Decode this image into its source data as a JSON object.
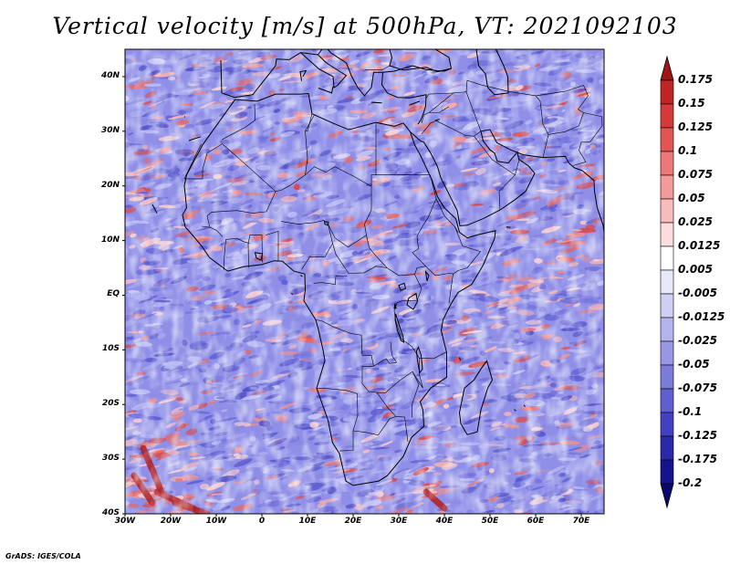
{
  "title": "Vertical velocity [m/s] at 500hPa, VT: 2021092103",
  "map": {
    "lat_labels": [
      "40N",
      "30N",
      "20N",
      "10N",
      "EQ",
      "10S",
      "20S",
      "30S",
      "40S"
    ],
    "lat_values": [
      40,
      30,
      20,
      10,
      0,
      -10,
      -20,
      -30,
      -40
    ],
    "lon_labels": [
      "30W",
      "20W",
      "10W",
      "0",
      "10E",
      "20E",
      "30E",
      "40E",
      "50E",
      "60E",
      "70E"
    ],
    "lon_values": [
      -30,
      -20,
      -10,
      0,
      10,
      20,
      30,
      40,
      50,
      60,
      70
    ],
    "extent": {
      "lon_min": -30,
      "lon_max": 75,
      "lat_min": -40,
      "lat_max": 45
    }
  },
  "colorbar": {
    "labels": [
      "0.175",
      "0.15",
      "0.125",
      "0.1",
      "0.075",
      "0.05",
      "0.025",
      "0.0125",
      "0.005",
      "-0.005",
      "-0.0125",
      "-0.025",
      "-0.05",
      "-0.075",
      "-0.1",
      "-0.125",
      "-0.175",
      "-0.2"
    ],
    "colors": [
      "#a01515",
      "#c02525",
      "#d43a3a",
      "#e25555",
      "#ec7878",
      "#f39a9a",
      "#f8bcbc",
      "#fcdcdc",
      "#ffffff",
      "#e8e8fb",
      "#cfcff5",
      "#b3b3ee",
      "#9797e6",
      "#7b7bdc",
      "#5f5fd0",
      "#4242c0",
      "#2a2aa8",
      "#16148c",
      "#0a0870"
    ]
  },
  "credit": "GrADS: IGES/COLA"
}
